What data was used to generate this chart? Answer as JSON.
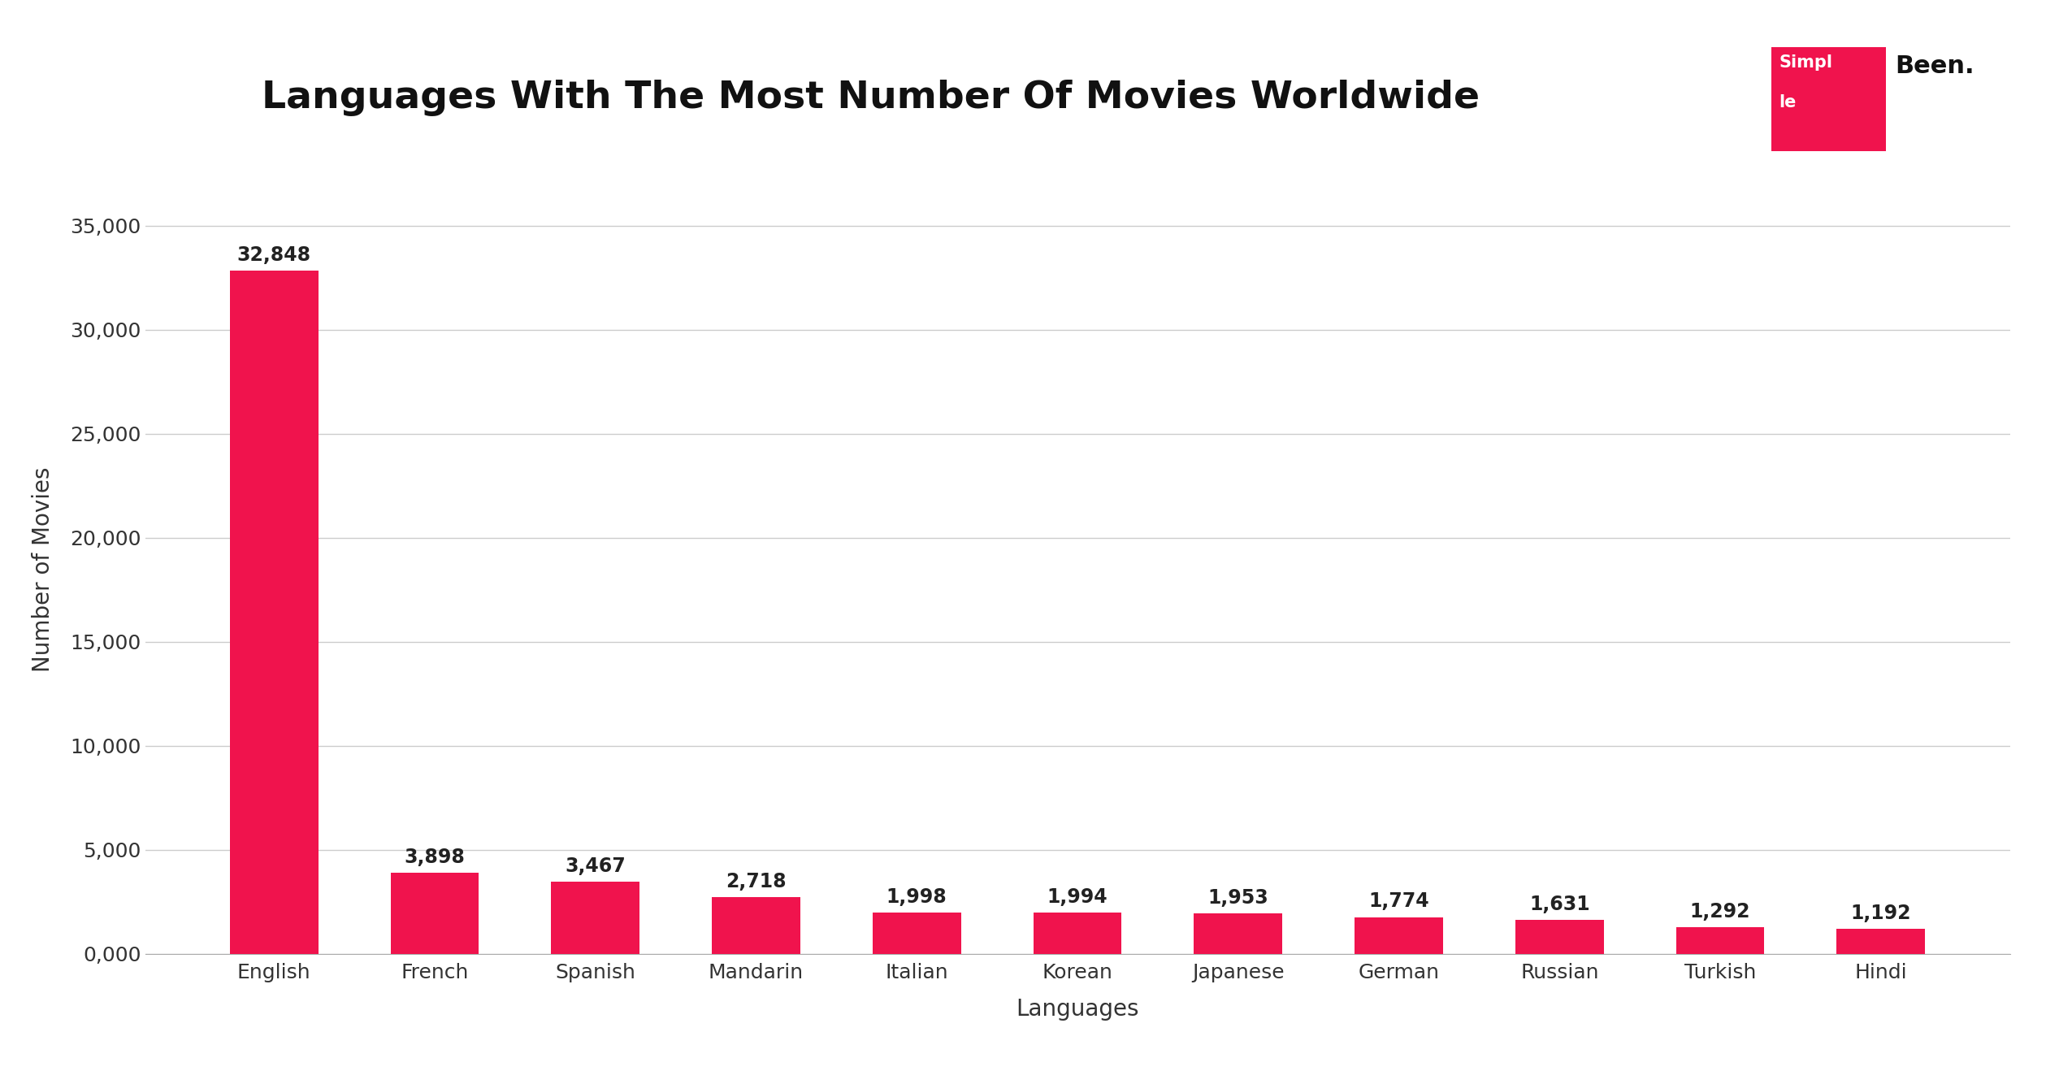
{
  "title": "Languages With The Most Number Of Movies Worldwide",
  "xlabel": "Languages",
  "ylabel": "Number of Movies",
  "categories": [
    "English",
    "French",
    "Spanish",
    "Mandarin",
    "Italian",
    "Korean",
    "Japanese",
    "German",
    "Russian",
    "Turkish",
    "Hindi"
  ],
  "values": [
    32848,
    3898,
    3467,
    2718,
    1998,
    1994,
    1953,
    1774,
    1631,
    1292,
    1192
  ],
  "bar_color": "#F0134D",
  "background_color": "#FFFFFF",
  "grid_color": "#CCCCCC",
  "title_fontsize": 34,
  "axis_label_fontsize": 20,
  "tick_fontsize": 18,
  "annotation_fontsize": 17,
  "ylim": [
    0,
    37000
  ],
  "yticks": [
    0,
    5000,
    10000,
    15000,
    20000,
    25000,
    30000,
    35000
  ],
  "ytick_labels": [
    "0,000",
    "5,000",
    "10,000",
    "15,000",
    "20,000",
    "25,000",
    "30,000",
    "35,000"
  ]
}
